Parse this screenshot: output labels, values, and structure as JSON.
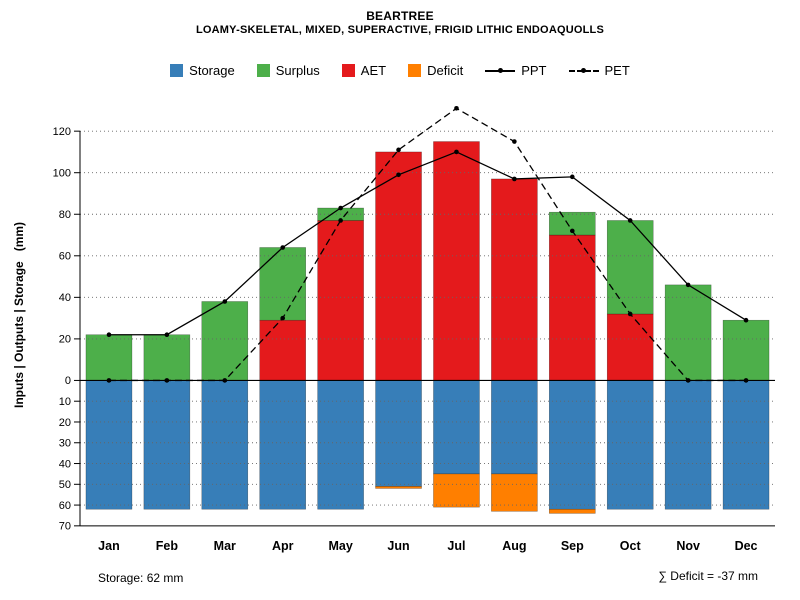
{
  "header": {
    "title": "BEARTREE",
    "subtitle": "LOAMY-SKELETAL, MIXED, SUPERACTIVE, FRIGID LITHIC ENDOAQUOLLS"
  },
  "legend": [
    {
      "label": "Storage",
      "color": "#377EB8",
      "type": "box"
    },
    {
      "label": "Surplus",
      "color": "#4DAF4A",
      "type": "box"
    },
    {
      "label": "AET",
      "color": "#E41A1C",
      "type": "box"
    },
    {
      "label": "Deficit",
      "color": "#FF7F00",
      "type": "box"
    },
    {
      "label": "PPT",
      "type": "solid-line"
    },
    {
      "label": "PET",
      "type": "dashed-line"
    }
  ],
  "footer": {
    "left": "Storage: 62 mm",
    "right": "∑ Deficit = -37 mm"
  },
  "chart_data": {
    "type": "bar",
    "title": "BEARTREE",
    "subtitle": "LOAMY-SKELETAL, MIXED, SUPERACTIVE, FRIGID LITHIC ENDOAQUOLLS",
    "ylabel": "Inputs | Outputs | Storage   (mm)",
    "xlabel": "",
    "units": "mm",
    "categories": [
      "Jan",
      "Feb",
      "Mar",
      "Apr",
      "May",
      "Jun",
      "Jul",
      "Aug",
      "Sep",
      "Oct",
      "Nov",
      "Dec"
    ],
    "series": [
      {
        "name": "Storage",
        "direction": "down",
        "color": "#377EB8",
        "values": [
          62,
          62,
          62,
          62,
          62,
          51,
          45,
          45,
          62,
          62,
          62,
          62
        ]
      },
      {
        "name": "Surplus",
        "direction": "up",
        "color": "#4DAF4A",
        "values": [
          22,
          22,
          38,
          35,
          6,
          0,
          0,
          0,
          11,
          45,
          46,
          29
        ]
      },
      {
        "name": "AET",
        "direction": "up",
        "color": "#E41A1C",
        "values": [
          0,
          0,
          0,
          29,
          77,
          110,
          115,
          97,
          70,
          32,
          0,
          0
        ]
      },
      {
        "name": "Deficit",
        "direction": "down",
        "color": "#FF7F00",
        "values": [
          0,
          0,
          0,
          0,
          0,
          1,
          16,
          18,
          2,
          0,
          0,
          0
        ]
      }
    ],
    "lines": [
      {
        "name": "PPT",
        "style": "solid",
        "values": [
          22,
          22,
          38,
          64,
          83,
          99,
          110,
          97,
          98,
          77,
          46,
          29
        ]
      },
      {
        "name": "PET",
        "style": "dashed",
        "values": [
          0,
          0,
          0,
          30,
          77,
          111,
          131,
          115,
          72,
          32,
          0,
          0
        ]
      }
    ],
    "yticks_up": [
      0,
      20,
      40,
      60,
      80,
      100,
      120
    ],
    "yticks_down": [
      10,
      20,
      30,
      40,
      50,
      60,
      70
    ],
    "ylim": [
      -72,
      135
    ],
    "grid": "dotted-horizontal",
    "legend_position": "top",
    "annotations": {
      "storage": "Storage: 62 mm",
      "deficit_sum": "∑ Deficit = -37 mm"
    }
  }
}
